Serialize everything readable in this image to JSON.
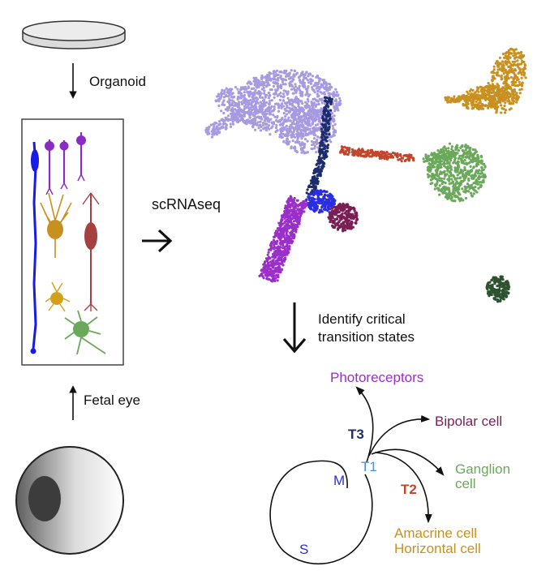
{
  "steps": {
    "organoid": "Organoid",
    "fetal_eye": "Fetal eye",
    "scrnaseq": "scRNAseq",
    "identify_line1": "Identify critical",
    "identify_line2": "transition states"
  },
  "trajectory": {
    "photoreceptors": "Photoreceptors",
    "bipolar": "Bipolar cell",
    "ganglion_line1": "Ganglion",
    "ganglion_line2": "cell",
    "amacrine": "Amacrine cell",
    "horizontal": "Horizontal cell",
    "t1": "T1",
    "t2": "T2",
    "t3": "T3",
    "m": "M",
    "s": "S"
  },
  "colors": {
    "photoreceptor": "#9b2fc9",
    "progenitor": "#a79ae0",
    "bipolar": "#7a1f55",
    "ganglion": "#6aa85a",
    "amacrine_horizontal": "#c89020",
    "t1": "#4a8fd0",
    "t2": "#c0462c",
    "t3": "#1d2d6c",
    "s_m": "#2a2de0",
    "dark_cluster": "#2e5230"
  },
  "icons": [
    "petri-dish-icon",
    "eye-ball-icon",
    "retina-cells-icon"
  ]
}
